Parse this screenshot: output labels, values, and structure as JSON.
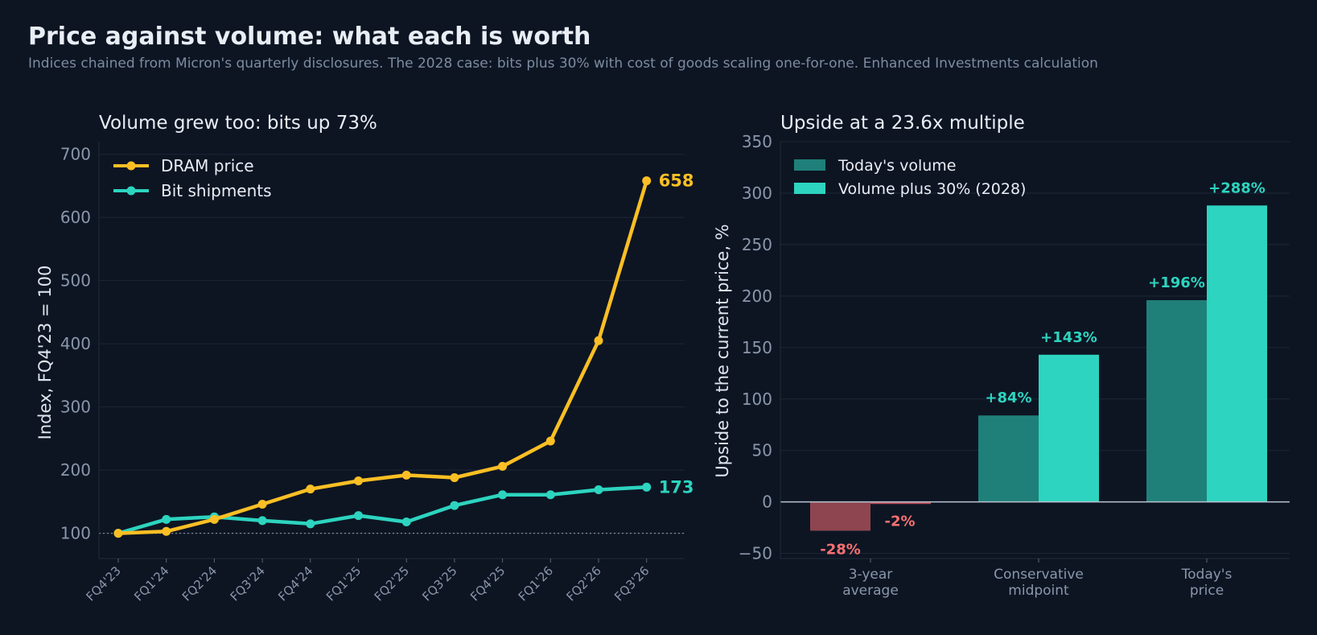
{
  "header": {
    "title": "Price against volume: what each is worth",
    "subtitle": "Indices chained from Micron's quarterly disclosures. The 2028 case: bits plus 30% with cost of goods scaling one-for-one. Enhanced Investments calculation"
  },
  "colors": {
    "background": "#0d1523",
    "dram": "#fbbf24",
    "bits": "#2dd4bf",
    "today_volume": "#1f8079",
    "volume_2028": "#2dd4bf",
    "negative_today": "#8e4550",
    "negative_2028": "#b94d57",
    "negative_label": "#f87171",
    "grid": "#1d2737",
    "text_muted": "#8a97ab"
  },
  "chart_data": [
    {
      "type": "line",
      "title": "Volume grew too: bits up 73%",
      "xlabel": "",
      "ylabel": "Index, FQ4'23 = 100",
      "x": [
        "FQ4'23",
        "FQ1'24",
        "FQ2'24",
        "FQ3'24",
        "FQ4'24",
        "FQ1'25",
        "FQ2'25",
        "FQ3'25",
        "FQ4'25",
        "FQ1'26",
        "FQ2'26",
        "FQ3'26"
      ],
      "ylim": [
        60,
        720
      ],
      "yticks": [
        100,
        200,
        300,
        400,
        500,
        600,
        700
      ],
      "baseline": 100,
      "grid": true,
      "legend": "top-left",
      "series": [
        {
          "name": "DRAM price",
          "color": "#fbbf24",
          "values": [
            100,
            103,
            122,
            146,
            170,
            183,
            192,
            188,
            206,
            246,
            405,
            658
          ],
          "end_label": "658"
        },
        {
          "name": "Bit shipments",
          "color": "#2dd4bf",
          "values": [
            100,
            122,
            126,
            120,
            115,
            128,
            118,
            144,
            161,
            161,
            169,
            173
          ],
          "end_label": "173"
        }
      ]
    },
    {
      "type": "bar",
      "title": "Upside at a 23.6x multiple",
      "xlabel": "",
      "ylabel": "Upside to the current price, %",
      "categories": [
        "3-year average",
        "Conservative midpoint",
        "Today's price"
      ],
      "category_lines": [
        [
          "3-year",
          "average"
        ],
        [
          "Conservative",
          "midpoint"
        ],
        [
          "Today's",
          "price"
        ]
      ],
      "ylim": [
        -55,
        350
      ],
      "yticks": [
        -50,
        0,
        50,
        100,
        150,
        200,
        250,
        300,
        350
      ],
      "ytick_labels": [
        "−50",
        "0",
        "50",
        "100",
        "150",
        "200",
        "250",
        "300",
        "350"
      ],
      "grid": true,
      "legend": "top-left",
      "series": [
        {
          "name": "Today's volume",
          "color": "#1f8079",
          "values": [
            -28,
            84,
            196
          ],
          "labels": [
            "-28%",
            "+84%",
            "+196%"
          ]
        },
        {
          "name": "Volume plus 30% (2028)",
          "color": "#2dd4bf",
          "values": [
            -2,
            143,
            288
          ],
          "labels": [
            "-2%",
            "+143%",
            "+288%"
          ]
        }
      ]
    }
  ]
}
